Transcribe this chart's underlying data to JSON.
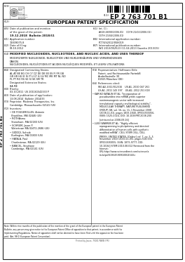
{
  "bg_color": "#ffffff",
  "patent_number": "EP 2 763 701 B1",
  "patent_type": "EUROPEAN PATENT SPECIFICATION",
  "label_19": "(19)",
  "label_11": "(11)",
  "label_12": "(12)",
  "label_45": "(45)",
  "label_21": "(21)",
  "label_22": "(22)",
  "label_51": "(51)",
  "label_86": "(86)",
  "label_87": "(87)",
  "label_54": "(54)",
  "label_84": "(84)",
  "label_74": "(74)",
  "label_30": "(30)",
  "label_43": "(43)",
  "label_73": "(73)",
  "label_72": "(72)",
  "label_56": "(56)",
  "pub_date_label": "Date of publication and mention",
  "pub_date_label2": "of the grant of the patent:",
  "pub_date_value": "19.12.2018  Bulletin 2018/51",
  "ipc_label": "Int. Cl.:",
  "ipc_line1": "A61K 48/00(2006.01)    C07H 21/02(2006.01)",
  "ipc_line2": "C07H 21/04(2006.01)",
  "app_number_label": "Application number:",
  "app_number_value": "12839075.8",
  "intl_app_label": "International application number:",
  "intl_app_value": "PCT/US2012/058019",
  "filing_date_label": "Date of filing:",
  "filing_date_value": "03.10.2012",
  "intl_pub_label": "International publication number:",
  "intl_pub_value": "WO 2013/052523 (11.04.2013 Gazette 2013/15)",
  "title_en": "MODIFIED NUCLEOSIDES, NUCLEOTIDES, AND NUCLEIC ACIDS, AND USES THEREOF",
  "title_de": "MODIFIZIERTE NUKLEOSIDE, NUKLEOTIDE UND NUKLEINSÄUREN UND VERWENDUNGEN",
  "title_de2": "DAVON",
  "title_fr": "NUCLÉOSIDES, NUCLÉOTIDES ET ACIDES NUCLÉIQUES MODIFIÉS, ET LEURS UTILISATIONS",
  "designated_label": "Designated Contracting States:",
  "designated_line1": "AL AT BE BG CH CY CZ DE DK EE ES FI FR GB",
  "designated_line2": "GR HR HU IE IS IT LI LT LU LV MC MK MT NL NO",
  "designated_line3": "PL PT RO RS SE SI SK SM TR",
  "extension_label": "Designated Extension States:",
  "extension_value": "BA ME",
  "rep_label": "Representative: Hoffmann Eitle",
  "rep_line2": "Patent- und Rechtsanwälte PartmbB",
  "rep_line3": "Arabellastraße 30",
  "rep_line4": "81925 München (DE)",
  "priority_label": "Priority:",
  "priority_value": "03.10.2011  US 201161542333 P",
  "pub_app_label": "Date of publication of application:",
  "pub_app_value": "13.08.2014  Bulletin 2014/33",
  "proprietor_line1": "Proprietor: Moderna Therapeutics, Inc.",
  "proprietor_line2": "Cambridge, Massachusetts 02141 (US)",
  "inventors_label": "Inventors:",
  "inv1a": "• DE FOUGEROLLES, Antonin",
  "inv1b": "  Brookline, MA 02446 (US)",
  "inv2a": "• RÖTHAsmu",
  "inv2b": "  Stoneham, MA 02180 (US)",
  "inv3a": "• SCHRUM, Jason P.",
  "inv3b": "  Watertown MA 02472-2686 (US)",
  "inv4a": "• GIDDQI, Suhaib",
  "inv4b": "  Burlington, MA 01803 (US)",
  "inv5a": "• HATALA, Paul",
  "inv5b": "  Charlestown, MA 02129 (US)",
  "inv6a": "• BANCEL, Stephane",
  "inv6b": "  Cambridge, MA 02141 (US)",
  "references_label": "References cited:",
  "ref_wipo1": "WO-A2-2011/012316    US-A1- 2010 047 261",
  "ref_wipo2": "US-A1- 2011 143 397    US-A2- 2012 251 618",
  "ref1_bullet": "• KARIKO KATALIN ET AL: \"Incorporation of",
  "ref1_l2": "pseudouridine into mRNA yields superior",
  "ref1_l3": "nonimmunogenic vector with increased",
  "ref1_l4": "translational capacity and biological stability\",",
  "ref1_l5": "MOLECULAR THERAPY, NATURE PUBLISHING",
  "ref1_l6": "GROUP, GB, vol. 16, no. 11, 1 November 2008",
  "ref1_l7": "(2008-11-01), pages 1833-1840, XP002555056,",
  "ref1_l8": "ISSN: 1525-0024, DOI: 10.1038/MT.2008.200",
  "ref1_l9": "[retrieved on 2008-09-16]",
  "ref2_bullet": "• LUIGI WARREN ET AL: \"Highly efficient",
  "ref2_l2": "reprogramming to pluripotency and directed",
  "ref2_l3": "differentiation of human cells with synthetic",
  "ref2_l4": "modified mRNA\", CELL STEM CELL, CELL",
  "ref2_l5": "PRESS, UNITED STATES, [Online] vol. 7, no. 5, 5",
  "ref2_l6": "November 2010 (2010-11-05), pages 618-630,",
  "ref2_l7": "XP002693055, ISSN: 1875-9777, DOI:",
  "ref2_l8": "10.1016/J.STEM.2010.08.012 Retrieved from the",
  "ref2_l9": "Internet:",
  "ref2_l10": "URL:http://www.sciencedirect.com/science/a",
  "ref2_l11": "rticle/pii/S1934590910004340>",
  "footer1": "Note: Within nine months of the publication of the mention of the grant of the European patent in the European Patent",
  "footer2": "Bulletin, any person may give notice to the European Patent Office of opposition to that patent, in accordance with the",
  "footer3": "Implementing Regulations. Notice of opposition shall not be deemed to have been filed until the opposition fee has been",
  "footer4": "paid. (Art. 99(1) European Patent Convention).",
  "sidebar_text": "EP 2 763 701 B1",
  "printed_by": "Printed by Jouve, 75001 PARIS (FR)"
}
